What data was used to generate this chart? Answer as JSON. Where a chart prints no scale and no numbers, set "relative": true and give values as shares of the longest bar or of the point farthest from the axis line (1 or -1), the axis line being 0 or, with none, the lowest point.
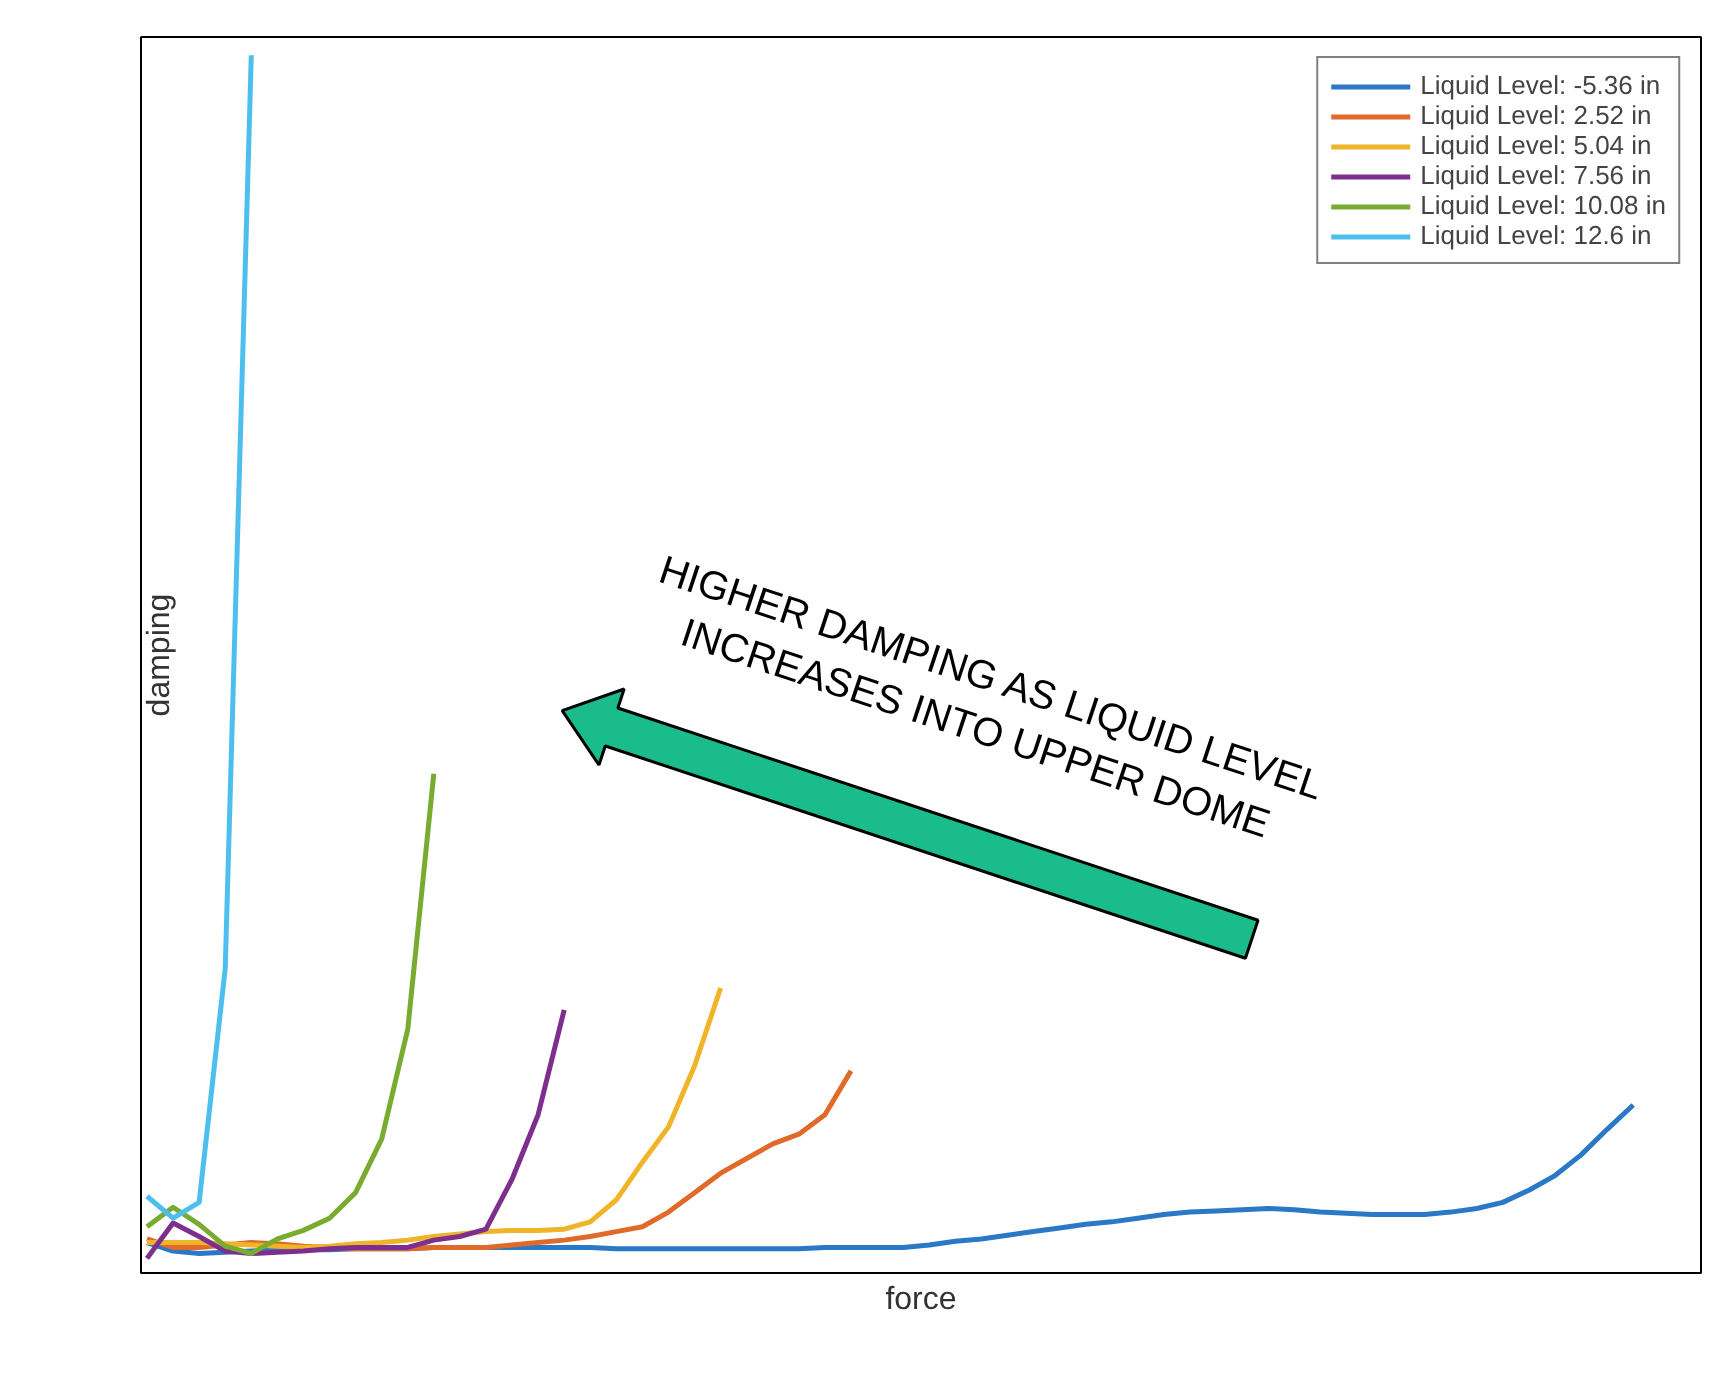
{
  "chart_data": {
    "type": "line",
    "relative": true,
    "xlabel": "force",
    "ylabel": "damping",
    "categories": [
      null,
      null,
      null,
      null,
      null,
      null,
      null,
      null,
      null,
      null,
      null,
      null,
      null,
      null,
      null,
      null,
      null,
      null,
      null,
      null,
      null,
      null,
      null,
      null,
      null,
      null,
      null,
      null,
      null,
      null,
      null,
      null,
      null,
      null,
      null,
      null,
      null,
      null,
      null,
      null,
      null,
      null,
      null,
      null,
      null,
      null,
      null,
      null,
      null,
      null,
      null,
      null,
      null,
      null,
      null,
      null,
      null,
      null
    ],
    "legend": "top right",
    "annotations": [
      "HIGHER DAMPING AS LIQUID LEVEL\nINCREASES INTO UPPER DOME"
    ],
    "series": [
      {
        "name": "Liquid Level: -5.36 in",
        "color": "#2a78c6",
        "values": [
          0.025,
          0.018,
          0.016,
          0.017,
          0.018,
          0.019,
          0.019,
          0.019,
          0.02,
          0.02,
          0.02,
          0.021,
          0.021,
          0.021,
          0.021,
          0.021,
          0.021,
          0.021,
          0.02,
          0.02,
          0.02,
          0.02,
          0.02,
          0.02,
          0.02,
          0.02,
          0.021,
          0.021,
          0.021,
          0.021,
          0.023,
          0.026,
          0.028,
          0.031,
          0.034,
          0.037,
          0.04,
          0.042,
          0.045,
          0.048,
          0.05,
          0.051,
          0.052,
          0.053,
          0.052,
          0.05,
          0.049,
          0.048,
          0.048,
          0.048,
          0.05,
          0.053,
          0.058,
          0.068,
          0.08,
          0.097,
          0.118,
          0.138
        ]
      },
      {
        "name": "Liquid Level: 2.52 in",
        "color": "#e06a2a",
        "values": [
          0.028,
          0.021,
          0.021,
          0.023,
          0.025,
          0.024,
          0.022,
          0.021,
          0.02,
          0.02,
          0.02,
          0.021,
          0.021,
          0.021,
          0.023,
          0.025,
          0.027,
          0.03,
          0.034,
          0.038,
          0.05,
          0.066,
          0.082,
          0.094,
          0.106,
          0.114,
          0.13,
          0.166,
          null,
          null,
          null,
          null,
          null,
          null,
          null,
          null,
          null,
          null,
          null,
          null,
          null,
          null,
          null,
          null,
          null,
          null,
          null,
          null,
          null,
          null,
          null,
          null,
          null,
          null,
          null,
          null,
          null,
          null
        ]
      },
      {
        "name": "Liquid Level: 5.04 in",
        "color": "#f0b429",
        "values": [
          0.025,
          0.025,
          0.025,
          0.024,
          0.023,
          0.022,
          0.021,
          0.022,
          0.024,
          0.025,
          0.027,
          0.03,
          0.032,
          0.034,
          0.035,
          0.035,
          0.036,
          0.042,
          0.06,
          0.091,
          0.12,
          0.17,
          0.234,
          null,
          null,
          null,
          null,
          null,
          null,
          null,
          null,
          null,
          null,
          null,
          null,
          null,
          null,
          null,
          null,
          null,
          null,
          null,
          null,
          null,
          null,
          null,
          null,
          null,
          null,
          null,
          null,
          null,
          null,
          null,
          null,
          null,
          null,
          null
        ]
      },
      {
        "name": "Liquid Level: 7.56 in",
        "color": "#7e2f8e",
        "values": [
          0.012,
          0.041,
          0.03,
          0.018,
          0.016,
          0.017,
          0.018,
          0.02,
          0.021,
          0.021,
          0.021,
          0.027,
          0.03,
          0.036,
          0.077,
          0.13,
          0.216,
          null,
          null,
          null,
          null,
          null,
          null,
          null,
          null,
          null,
          null,
          null,
          null,
          null,
          null,
          null,
          null,
          null,
          null,
          null,
          null,
          null,
          null,
          null,
          null,
          null,
          null,
          null,
          null,
          null,
          null,
          null,
          null,
          null,
          null,
          null,
          null,
          null,
          null,
          null,
          null,
          null
        ]
      },
      {
        "name": "Liquid Level: 10.08 in",
        "color": "#77ac30",
        "values": [
          0.038,
          0.054,
          0.04,
          0.022,
          0.016,
          0.028,
          0.035,
          0.045,
          0.066,
          0.11,
          0.2,
          0.41,
          null,
          null,
          null,
          null,
          null,
          null,
          null,
          null,
          null,
          null,
          null,
          null,
          null,
          null,
          null,
          null,
          null,
          null,
          null,
          null,
          null,
          null,
          null,
          null,
          null,
          null,
          null,
          null,
          null,
          null,
          null,
          null,
          null,
          null,
          null,
          null,
          null,
          null,
          null,
          null,
          null,
          null,
          null,
          null,
          null,
          null
        ]
      },
      {
        "name": "Liquid Level: 12.6 in",
        "color": "#4dbeee",
        "values": [
          0.063,
          0.045,
          0.058,
          0.25,
          1.0,
          null,
          null,
          null,
          null,
          null,
          null,
          null,
          null,
          null,
          null,
          null,
          null,
          null,
          null,
          null,
          null,
          null,
          null,
          null,
          null,
          null,
          null,
          null,
          null,
          null,
          null,
          null,
          null,
          null,
          null,
          null,
          null,
          null,
          null,
          null,
          null,
          null,
          null,
          null,
          null,
          null,
          null,
          null,
          null,
          null,
          null,
          null,
          null,
          null,
          null,
          null,
          null,
          null
        ]
      }
    ]
  }
}
